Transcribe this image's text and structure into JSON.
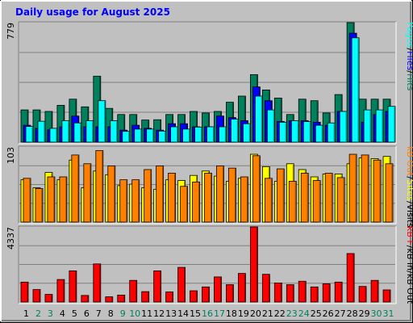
{
  "chart_data": {
    "type": "bar",
    "title": "Daily usage for August 2025",
    "days": [
      "1",
      "2",
      "3",
      "4",
      "5",
      "6",
      "7",
      "8",
      "9",
      "10",
      "11",
      "12",
      "13",
      "14",
      "15",
      "16",
      "17",
      "18",
      "19",
      "20",
      "21",
      "22",
      "23",
      "24",
      "25",
      "26",
      "27",
      "28",
      "29",
      "30",
      "31"
    ],
    "weekend_days": [
      "2",
      "3",
      "9",
      "10",
      "16",
      "17",
      "23",
      "24",
      "30",
      "31"
    ],
    "panels": [
      {
        "id": "hits",
        "axis_max_label": "779",
        "ylim": [
          0,
          779
        ],
        "side_labels": [
          "Pages",
          "/",
          "Files",
          "/",
          "Hits"
        ],
        "series": [
          {
            "name": "Hits",
            "color": "#00805c",
            "values": [
              210,
              210,
              200,
              240,
              280,
              230,
              430,
              220,
              180,
              180,
              144,
              146,
              180,
              180,
              200,
              190,
              200,
              260,
              300,
              440,
              340,
              287,
              180,
              280,
              270,
              190,
              310,
              779,
              280,
              280,
              280
            ]
          },
          {
            "name": "Files",
            "color": "#0000ff",
            "values": [
              110,
              90,
              80,
              100,
              170,
              100,
              100,
              100,
              78,
              110,
              90,
              78,
              120,
              120,
              100,
              100,
              170,
              160,
              140,
              360,
              270,
              135,
              140,
              140,
              130,
              110,
              200,
              710,
              130,
              180,
              200
            ]
          },
          {
            "name": "Pages",
            "color": "#00ffff",
            "values": [
              102,
              136,
              90,
              140,
              125,
              140,
              270,
              140,
              70,
              85,
              85,
              72,
              100,
              85,
              98,
              100,
              100,
              150,
              120,
              300,
              210,
              130,
              140,
              134,
              110,
              125,
              200,
              680,
              210,
              210,
              233
            ]
          }
        ]
      },
      {
        "id": "visits",
        "axis_max_label": "103",
        "ylim": [
          0,
          103
        ],
        "side_labels": [
          "kB Out",
          "/",
          "Sites",
          "/",
          "Visits"
        ],
        "series": [
          {
            "name": "Visits",
            "color": "#ffff00",
            "values": [
              58,
              47,
              68,
              58,
              85,
              47,
              70,
              65,
              50,
              52,
              47,
              45,
              58,
              57,
              64,
              70,
              63,
              56,
              60,
              93,
              76,
              56,
              80,
              72,
              62,
              66,
              66,
              80,
              88,
              87,
              90
            ]
          },
          {
            "name": "Sites",
            "color": "#ff8000",
            "values": [
              60,
              46,
              62,
              62,
              92,
              80,
              98,
              77,
              58,
              58,
              72,
              77,
              67,
              49,
              55,
              67,
              77,
              74,
              62,
              91,
              60,
              73,
              56,
              67,
              57,
              67,
              61,
              93,
              92,
              85,
              80
            ]
          }
        ]
      },
      {
        "id": "kbytes",
        "axis_max_label": "4337",
        "ylim": [
          0,
          4337
        ],
        "side_labels": [
          "kB F",
          "/",
          "kB In",
          "/",
          "kB Out"
        ],
        "series": [
          {
            "name": "kB F",
            "color": "#ff0000",
            "values": [
              1150,
              720,
              440,
              1300,
              1800,
              380,
              2200,
              300,
              400,
              1250,
              600,
              1800,
              580,
              2000,
              650,
              870,
              1450,
              1000,
              1650,
              4337,
              1600,
              1100,
              1000,
              1200,
              870,
              1050,
              1150,
              2800,
              900,
              1250,
              700
            ]
          }
        ]
      }
    ]
  }
}
